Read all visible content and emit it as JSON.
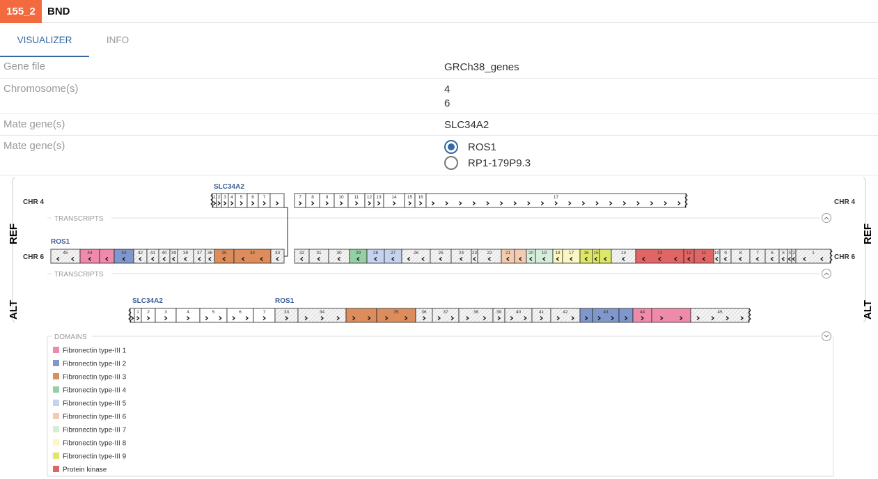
{
  "header": {
    "id": "155_2",
    "type": "BND"
  },
  "tabs": [
    {
      "label": "VISUALIZER"
    },
    {
      "label": "INFO"
    }
  ],
  "props": {
    "gene_file": {
      "label": "Gene file",
      "value": "GRCh38_genes"
    },
    "chromosomes": {
      "label": "Chromosome(s)",
      "values": [
        "4",
        "6"
      ]
    },
    "mate_gene_1": {
      "label": "Mate gene(s)",
      "value": "SLC34A2"
    },
    "mate_gene_2": {
      "label": "Mate gene(s)",
      "options": [
        {
          "label": "ROS1",
          "checked": true
        },
        {
          "label": "RP1-179P9.3",
          "checked": false
        }
      ]
    }
  },
  "viz": {
    "ref_label": "REF",
    "alt_label": "ALT",
    "chr4_label": "CHR 4",
    "chr6_label": "CHR 6",
    "transcripts_label": "TRANSCRIPTS",
    "domains_label": "DOMAINS",
    "gene_slc": "SLC34A2",
    "gene_ros": "ROS1",
    "slc_exons": [
      "1",
      "2",
      "3",
      "4",
      "5",
      "6",
      "7",
      "7",
      "8",
      "9",
      "10",
      "11",
      "12",
      "13",
      "14",
      "15",
      "16",
      "17"
    ],
    "ros_exons": [
      "45",
      "44",
      "43",
      "42",
      "41",
      "40",
      "39",
      "38",
      "37",
      "36",
      "35",
      "34",
      "33",
      "32",
      "31",
      "30",
      "29",
      "28",
      "27",
      "26",
      "25",
      "24",
      "23",
      "22",
      "21",
      "20",
      "19",
      "18",
      "17",
      "16",
      "15",
      "14",
      "13",
      "12",
      "11",
      "10",
      "9",
      "8",
      "7",
      "6",
      "5",
      "3",
      "2",
      "1"
    ],
    "alt_slc_exons": [
      "1",
      "2",
      "3",
      "4",
      "5",
      "6",
      "7"
    ],
    "alt_ros_exons": [
      "33",
      "34",
      "35",
      "36",
      "37",
      "38",
      "39",
      "40",
      "41",
      "42",
      "43",
      "44",
      "45"
    ]
  },
  "domains": [
    {
      "name": "Fibronectin type-III 1",
      "color": "#f08aaa"
    },
    {
      "name": "Fibronectin type-III 2",
      "color": "#7f97cc"
    },
    {
      "name": "Fibronectin type-III 3",
      "color": "#dd8c5b"
    },
    {
      "name": "Fibronectin type-III 4",
      "color": "#95d0a5"
    },
    {
      "name": "Fibronectin type-III 5",
      "color": "#c5d3ef"
    },
    {
      "name": "Fibronectin type-III 6",
      "color": "#f3cbb1"
    },
    {
      "name": "Fibronectin type-III 7",
      "color": "#d5eedb"
    },
    {
      "name": "Fibronectin type-III 8",
      "color": "#fbf6c3"
    },
    {
      "name": "Fibronectin type-III 9",
      "color": "#dde86a"
    },
    {
      "name": "Protein kinase",
      "color": "#e06565"
    }
  ]
}
